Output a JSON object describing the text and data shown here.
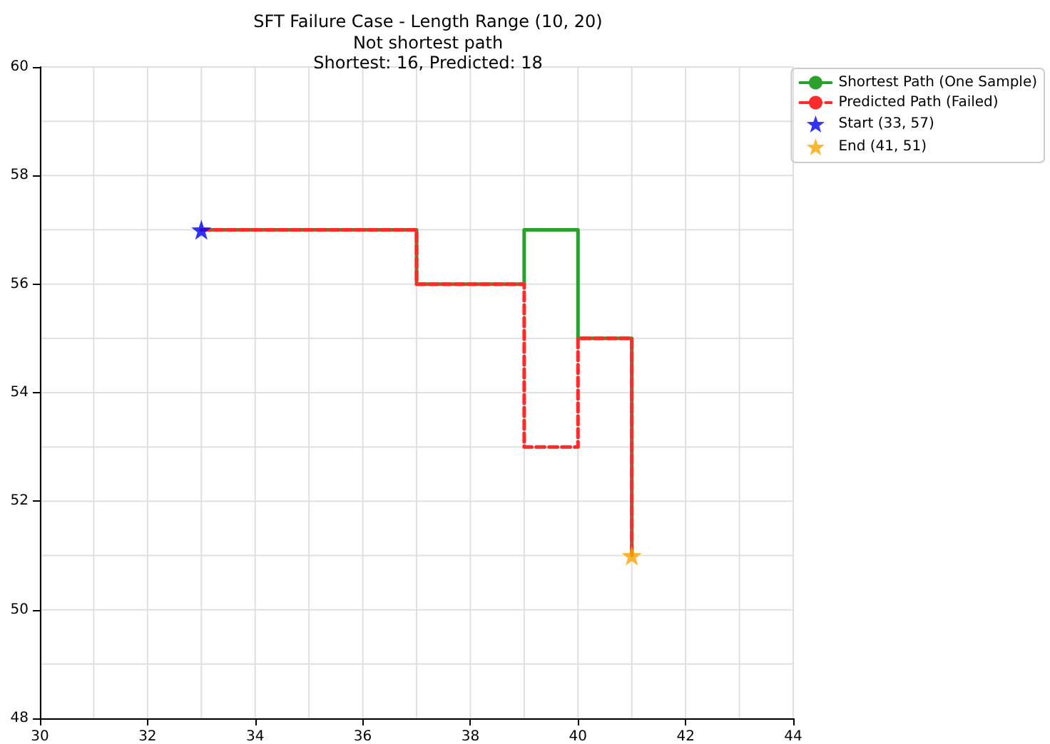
{
  "chart_data": {
    "type": "line",
    "title": "SFT Failure Case - Length Range (10, 20)",
    "subtitle": "Not shortest path\nShortest: 16, Predicted: 18",
    "xlim": [
      30,
      44
    ],
    "ylim": [
      48,
      60
    ],
    "xticks": [
      30,
      {
        "value": 31,
        "label": null
      },
      32,
      {
        "value": 33,
        "label": null
      },
      34,
      {
        "value": 35,
        "label": null
      },
      36,
      {
        "value": 37,
        "label": null
      },
      38,
      {
        "value": 39,
        "label": null
      },
      40,
      {
        "value": 41,
        "label": null
      },
      42,
      {
        "value": 43,
        "label": null
      },
      44
    ],
    "yticks": [
      48,
      {
        "value": 49,
        "label": null
      },
      50,
      {
        "value": 51,
        "label": null
      },
      52,
      {
        "value": 53,
        "label": null
      },
      54,
      {
        "value": 55,
        "label": null
      },
      56,
      {
        "value": 57,
        "label": null
      },
      58,
      {
        "value": 59,
        "label": null
      },
      60
    ],
    "grid": true,
    "legend": "top right",
    "series": [
      {
        "name": "Shortest Path (One Sample)",
        "type": "line",
        "color": "#2ca02c",
        "line_style": "solid",
        "marker": "none",
        "x": [
          33,
          37,
          37,
          39,
          39,
          40,
          40,
          41,
          41
        ],
        "values": [
          57,
          57,
          56,
          56,
          57,
          57,
          55,
          55,
          51
        ]
      },
      {
        "name": "Predicted Path (Failed)",
        "type": "line",
        "color": "#ff2a2a",
        "line_style": "dashed",
        "marker": "none",
        "x": [
          33,
          37,
          37,
          39,
          39,
          40,
          40,
          41,
          41
        ],
        "values": [
          57,
          57,
          56,
          56,
          53,
          53,
          55,
          55,
          51
        ]
      },
      {
        "name": "Start (33, 57)",
        "type": "scatter",
        "color": "#0000ff",
        "marker": "star",
        "x": [
          33
        ],
        "values": [
          57
        ]
      },
      {
        "name": "End (41, 51)",
        "type": "scatter",
        "color": "#ffa500",
        "marker": "star",
        "x": [
          41
        ],
        "values": [
          51
        ]
      }
    ]
  }
}
